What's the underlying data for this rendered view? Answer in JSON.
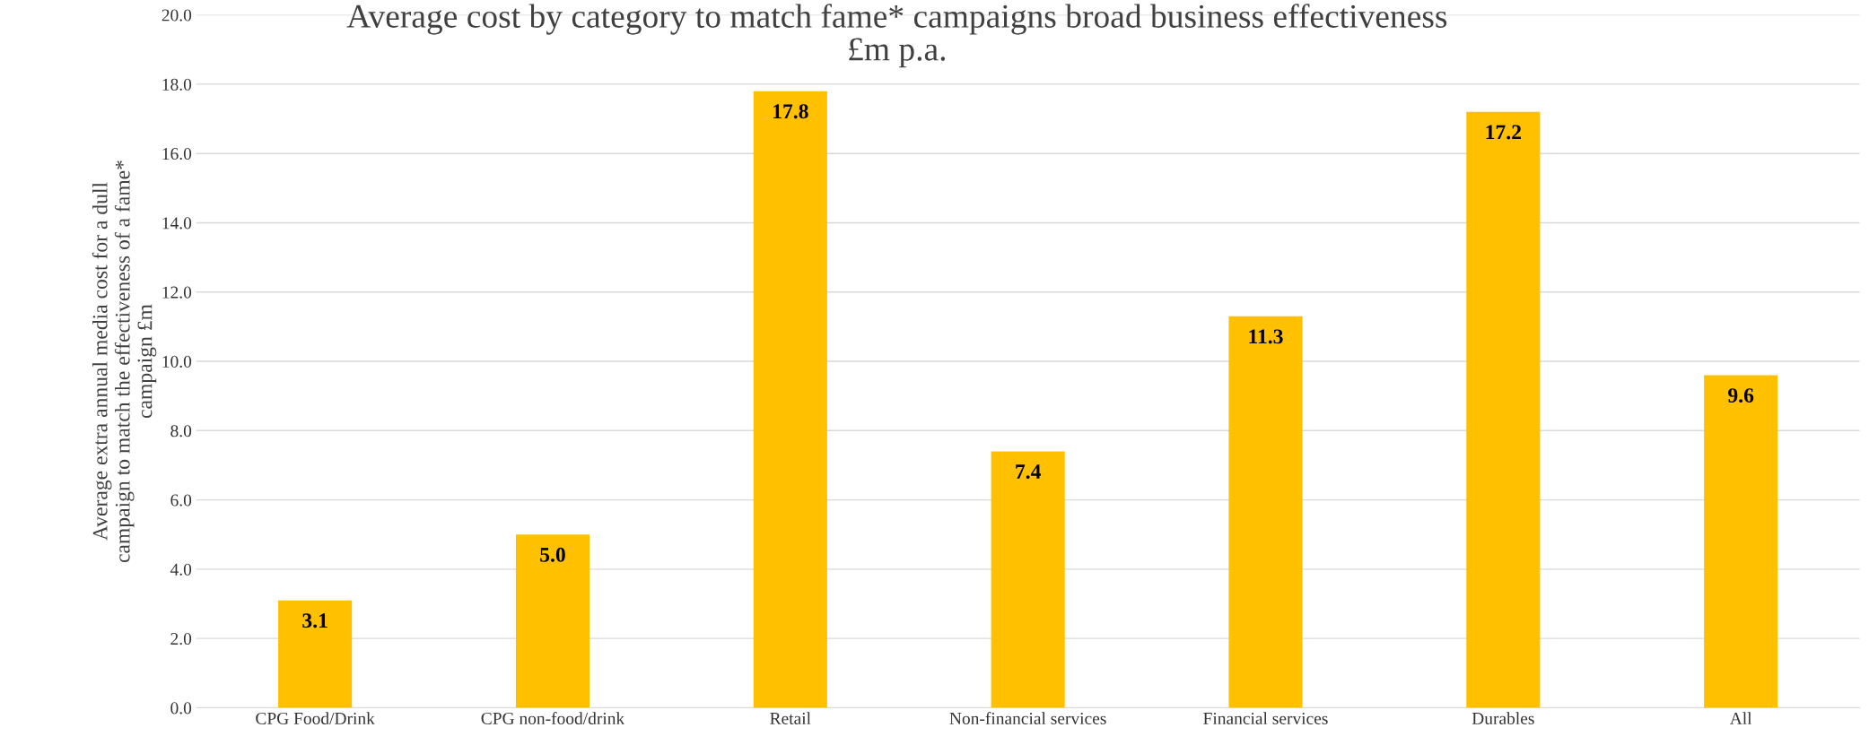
{
  "chart_data": {
    "type": "bar",
    "title": "Average cost by category to match fame* campaigns broad business effectiveness\n£m p.a.",
    "ylabel": "Average extra annual media cost for a dull\ncampaign to match the effectiveness of a fame*\ncampaign £m",
    "categories": [
      "CPG Food/Drink",
      "CPG non-food/drink",
      "Retail",
      "Non-financial services",
      "Financial services",
      "Durables",
      "All"
    ],
    "values": [
      3.1,
      5.0,
      17.8,
      7.4,
      11.3,
      17.2,
      9.6
    ],
    "value_labels": [
      "3.1",
      "5.0",
      "17.8",
      "7.4",
      "11.3",
      "17.2",
      "9.6"
    ],
    "color": "#ffc000",
    "ylim": [
      0,
      20
    ],
    "yticks": [
      {
        "value": 0,
        "label": "0.0"
      },
      {
        "value": 2,
        "label": "2.0"
      },
      {
        "value": 4,
        "label": "4.0"
      },
      {
        "value": 6,
        "label": "6.0"
      },
      {
        "value": 8,
        "label": "8.0"
      },
      {
        "value": 10,
        "label": "10.0"
      },
      {
        "value": 12,
        "label": "12.0"
      },
      {
        "value": 14,
        "label": "14.0"
      },
      {
        "value": 16,
        "label": "16.0"
      },
      {
        "value": 18,
        "label": "18.0"
      },
      {
        "value": 20,
        "label": "20.0"
      }
    ],
    "grid": "y",
    "legend": false
  }
}
